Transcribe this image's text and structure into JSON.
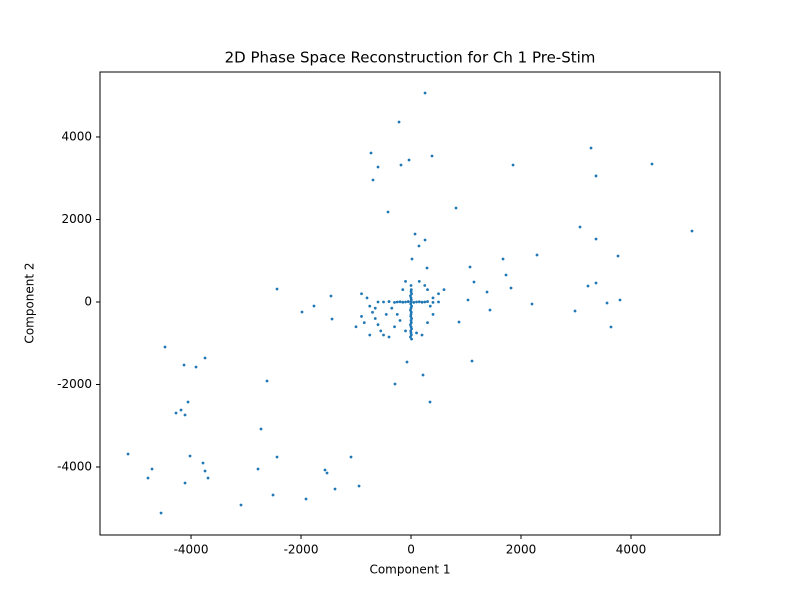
{
  "chart_data": {
    "type": "scatter",
    "title": "2D Phase Space Reconstruction for Ch 1 Pre-Stim",
    "x_label": "Component 1",
    "y_label": "Component 2",
    "color": "#1f77b4",
    "xlim": [
      -5655,
      5618
    ],
    "ylim": [
      -5648,
      5575
    ],
    "xticks": [
      -4000,
      -2000,
      0,
      2000,
      4000
    ],
    "yticks": [
      -4000,
      -2000,
      0,
      2000,
      4000
    ],
    "x": [
      255,
      -218,
      -727,
      -600,
      -691,
      -36,
      -182,
      382,
      -418,
      818,
      1855,
      3273,
      3364,
      4382,
      5109,
      3073,
      3364,
      3764,
      2291,
      73,
      255,
      145,
      18,
      291,
      1073,
      1673,
      1727,
      1382,
      1818,
      1145,
      1036,
      2200,
      1436,
      873,
      1109,
      2982,
      3218,
      3364,
      3564,
      3800,
      3636,
      -73,
      218,
      -291,
      345,
      -2436,
      -1982,
      -1764,
      -1455,
      -1436,
      -4473,
      -4127,
      -3909,
      -3745,
      -2618,
      -4054,
      -4182,
      -4273,
      -4109,
      -2727,
      -5145,
      -4018,
      -2436,
      -1091,
      -3782,
      -3745,
      -4709,
      -4782,
      -3691,
      -4109,
      -2782,
      -1564,
      -1527,
      -945,
      -1382,
      -2509,
      -1909,
      -3091,
      -4545,
      10,
      -10,
      5,
      0,
      -5,
      10,
      0,
      -10,
      5,
      0,
      10,
      -5,
      0,
      5,
      -10,
      0,
      10,
      -5,
      0,
      5,
      0,
      -10,
      10,
      0,
      5,
      0,
      -500,
      -400,
      -300,
      -250,
      -200,
      -150,
      -100,
      -50,
      50,
      100,
      150,
      200,
      250,
      300,
      400,
      500,
      -900,
      -800,
      -750,
      -700,
      -650,
      -600,
      -550,
      -500,
      -400,
      -850,
      -750,
      -300,
      -200,
      -100,
      -450,
      -350,
      -250,
      -600,
      -150,
      100,
      200,
      300,
      400,
      500,
      300,
      150,
      250,
      -100,
      600,
      350,
      -900,
      -1000,
      -650,
      400
    ],
    "y": [
      5066,
      4363,
      3612,
      3273,
      2958,
      3442,
      3321,
      3539,
      2182,
      2279,
      3321,
      3733,
      3055,
      3345,
      1721,
      1818,
      1527,
      1115,
      1139,
      1648,
      1503,
      1357,
      1042,
      824,
      848,
      1042,
      654,
      242,
      339,
      485,
      48,
      -48,
      -194,
      -485,
      -1430,
      -218,
      388,
      460,
      -24,
      48,
      -606,
      -1454,
      -1769,
      -1988,
      -2424,
      315,
      -242,
      -97,
      145,
      -412,
      -1091,
      -1527,
      -1576,
      -1357,
      -1915,
      -2424,
      -2618,
      -2691,
      -2739,
      -3079,
      -3685,
      -3733,
      -3758,
      -3758,
      -3903,
      -4097,
      -4048,
      -4266,
      -4266,
      -4388,
      -4048,
      -4072,
      -4145,
      -4460,
      -4533,
      -4679,
      -4775,
      -4921,
      -5115,
      -900,
      -850,
      -800,
      -750,
      -700,
      -650,
      -600,
      -550,
      -500,
      -450,
      -400,
      -350,
      -300,
      -250,
      -200,
      -150,
      -100,
      -50,
      0,
      50,
      100,
      150,
      200,
      250,
      300,
      400,
      0,
      10,
      -10,
      0,
      5,
      -5,
      0,
      10,
      -10,
      0,
      5,
      -5,
      0,
      10,
      -10,
      0,
      200,
      100,
      -100,
      -250,
      -400,
      -550,
      -700,
      -800,
      -850,
      -500,
      -800,
      -600,
      -450,
      -700,
      -300,
      -150,
      -300,
      0,
      300,
      -750,
      -800,
      -500,
      -300,
      200,
      300,
      500,
      400,
      500,
      300,
      -100,
      -350,
      -600,
      -150,
      100
    ]
  }
}
